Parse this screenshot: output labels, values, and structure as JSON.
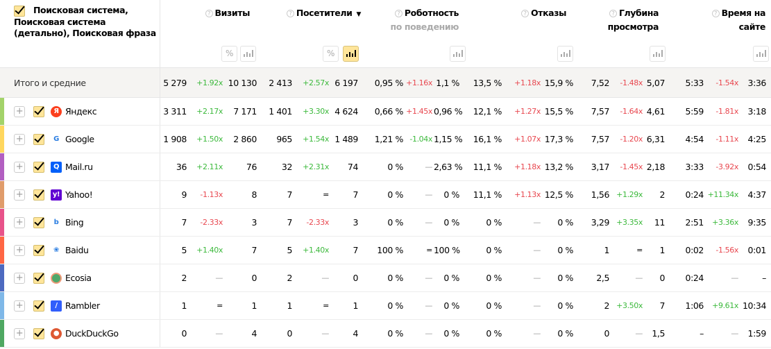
{
  "header": {
    "dimension_title": "Поисковая система, Поисковая система (детально), Поисковая фраза",
    "metrics": [
      {
        "title": "Визиты"
      },
      {
        "title": "Посетители",
        "sorted": "desc"
      },
      {
        "title": "Роботность",
        "subtitle": "по поведению"
      },
      {
        "title": "Отказы"
      },
      {
        "title": "Глубина просмотра"
      },
      {
        "title": "Время на сайте"
      }
    ],
    "help_icon": "?",
    "percent_label": "%"
  },
  "colors": {
    "accent": "#ffe59a",
    "up": "#3cb93c",
    "down": "#e8474f"
  },
  "total": {
    "label": "Итого и средние",
    "cells": [
      "5 279",
      "+1.92x",
      "10 130",
      "2 413",
      "+2.57x",
      "6 197",
      "0,95 %",
      "+1.16x",
      "1,1 %",
      "13,5 %",
      "+1.18x",
      "15,9 %",
      "7,52",
      "-1.48x",
      "5,07",
      "5:33",
      "-1.54x",
      "3:36"
    ],
    "tones": [
      "",
      "up",
      "",
      "",
      "up",
      "",
      "",
      "dn",
      "",
      "",
      "dn",
      "",
      "",
      "dn",
      "",
      "",
      "dn",
      ""
    ]
  },
  "rows": [
    {
      "name": "Яндекс",
      "icon": "yandex-logo",
      "color": "#a3d36a",
      "logo_color": "#fc3f1d",
      "glyph": "Я",
      "cells": [
        "3 311",
        "+2.17x",
        "7 171",
        "1 401",
        "+3.30x",
        "4 624",
        "0,66 %",
        "+1.45x",
        "0,96 %",
        "12,1 %",
        "+1.27x",
        "15,5 %",
        "7,57",
        "-1.64x",
        "4,61",
        "5:59",
        "-1.81x",
        "3:18"
      ],
      "tones": [
        "",
        "up",
        "",
        "",
        "up",
        "",
        "",
        "dn",
        "",
        "",
        "dn",
        "",
        "",
        "dn",
        "",
        "",
        "dn",
        ""
      ]
    },
    {
      "name": "Google",
      "icon": "google-logo",
      "color": "#ffd75e",
      "logo_color": "#ffffff",
      "glyph": "G",
      "cells": [
        "1 908",
        "+1.50x",
        "2 860",
        "965",
        "+1.54x",
        "1 489",
        "1,21 %",
        "-1.04x",
        "1,15 %",
        "16,1 %",
        "+1.07x",
        "17,3 %",
        "7,57",
        "-1.20x",
        "6,31",
        "4:54",
        "-1.11x",
        "4:25"
      ],
      "tones": [
        "",
        "up",
        "",
        "",
        "up",
        "",
        "",
        "up",
        "",
        "",
        "dn",
        "",
        "",
        "dn",
        "",
        "",
        "dn",
        ""
      ]
    },
    {
      "name": "Mail.ru",
      "icon": "mailru-logo",
      "color": "#b25fc1",
      "logo_color": "#005ff9",
      "glyph": "Q",
      "cells": [
        "36",
        "+2.11x",
        "76",
        "32",
        "+2.31x",
        "74",
        "0 %",
        "—",
        "2,63 %",
        "11,1 %",
        "+1.18x",
        "13,2 %",
        "3,17",
        "-1.45x",
        "2,18",
        "3:33",
        "-3.92x",
        "0:54"
      ],
      "tones": [
        "",
        "up",
        "",
        "",
        "up",
        "",
        "",
        "ne",
        "",
        "",
        "dn",
        "",
        "",
        "dn",
        "",
        "",
        "dn",
        ""
      ]
    },
    {
      "name": "Yahoo!",
      "icon": "yahoo-logo",
      "color": "#e09c6b",
      "logo_color": "#6001d2",
      "glyph": "y!",
      "cells": [
        "9",
        "-1.13x",
        "8",
        "7",
        "=",
        "7",
        "0 %",
        "—",
        "0 %",
        "11,1 %",
        "+1.13x",
        "12,5 %",
        "1,56",
        "+1.29x",
        "2",
        "0:24",
        "+11.34x",
        "4:37"
      ],
      "tones": [
        "",
        "dn",
        "",
        "",
        "",
        "",
        "",
        "ne",
        "",
        "",
        "dn",
        "",
        "",
        "up",
        "",
        "",
        "up",
        ""
      ]
    },
    {
      "name": "Bing",
      "icon": "bing-logo",
      "color": "#e8538a",
      "logo_color": "#ffffff",
      "glyph": "b",
      "cells": [
        "7",
        "-2.33x",
        "3",
        "7",
        "-2.33x",
        "3",
        "0 %",
        "—",
        "0 %",
        "0 %",
        "—",
        "0 %",
        "3,29",
        "+3.35x",
        "11",
        "2:51",
        "+3.36x",
        "9:35"
      ],
      "tones": [
        "",
        "dn",
        "",
        "",
        "dn",
        "",
        "",
        "ne",
        "",
        "",
        "ne",
        "",
        "",
        "up",
        "",
        "",
        "up",
        ""
      ]
    },
    {
      "name": "Baidu",
      "icon": "baidu-logo",
      "color": "#ff6644",
      "logo_color": "#ffffff",
      "glyph": "❀",
      "cells": [
        "5",
        "+1.40x",
        "7",
        "5",
        "+1.40x",
        "7",
        "100 %",
        "=",
        "100 %",
        "0 %",
        "—",
        "0 %",
        "1",
        "=",
        "1",
        "0:02",
        "-1.56x",
        "0:01"
      ],
      "tones": [
        "",
        "up",
        "",
        "",
        "up",
        "",
        "",
        "",
        "",
        "",
        "ne",
        "",
        "",
        "",
        "",
        "",
        "dn",
        ""
      ]
    },
    {
      "name": "Ecosia",
      "icon": "ecosia-logo",
      "color": "#4d6ac0",
      "logo_color": "#4fa86a",
      "glyph": "",
      "cells": [
        "2",
        "—",
        "0",
        "2",
        "—",
        "0",
        "0 %",
        "—",
        "0 %",
        "0 %",
        "—",
        "0 %",
        "2,5",
        "—",
        "0",
        "0:24",
        "—",
        "–"
      ],
      "tones": [
        "",
        "ne",
        "",
        "",
        "ne",
        "",
        "",
        "ne",
        "",
        "",
        "ne",
        "",
        "",
        "ne",
        "",
        "",
        "ne",
        ""
      ]
    },
    {
      "name": "Rambler",
      "icon": "rambler-logo",
      "color": "#7fb8e8",
      "logo_color": "#315efb",
      "glyph": "/",
      "cells": [
        "1",
        "=",
        "1",
        "1",
        "=",
        "1",
        "0 %",
        "—",
        "0 %",
        "0 %",
        "—",
        "0 %",
        "2",
        "+3.50x",
        "7",
        "1:06",
        "+9.61x",
        "10:34"
      ],
      "tones": [
        "",
        "",
        "",
        "",
        "",
        "",
        "",
        "ne",
        "",
        "",
        "ne",
        "",
        "",
        "up",
        "",
        "",
        "up",
        ""
      ]
    },
    {
      "name": "DuckDuckGo",
      "icon": "duckduckgo-logo",
      "color": "#4fa862",
      "logo_color": "#de5833",
      "glyph": "●",
      "cells": [
        "0",
        "—",
        "4",
        "0",
        "—",
        "4",
        "0 %",
        "—",
        "0 %",
        "0 %",
        "—",
        "0 %",
        "0",
        "—",
        "1,5",
        "–",
        "—",
        "1:59"
      ],
      "tones": [
        "",
        "ne",
        "",
        "",
        "ne",
        "",
        "",
        "ne",
        "",
        "",
        "ne",
        "",
        "",
        "ne",
        "",
        "",
        "ne",
        ""
      ]
    }
  ]
}
